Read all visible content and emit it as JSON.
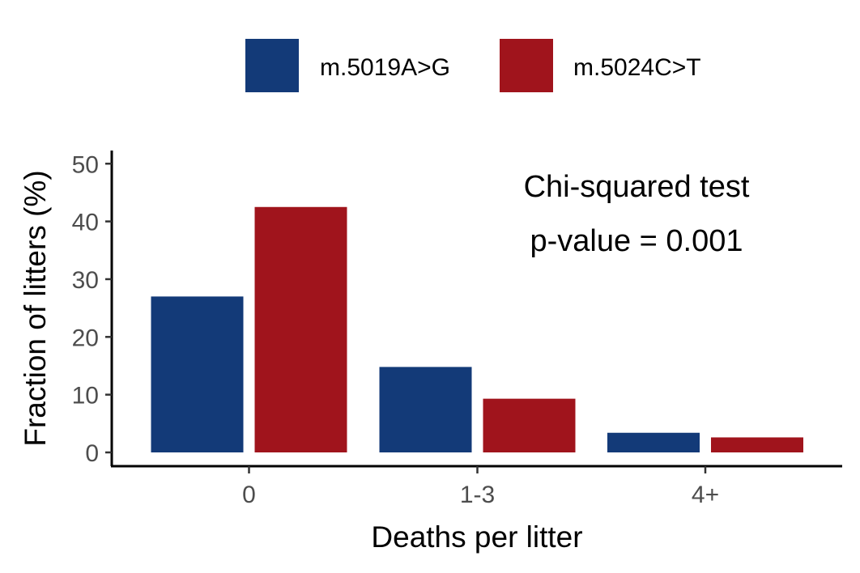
{
  "chart_data": {
    "type": "bar",
    "title": "",
    "xlabel": "Deaths per litter",
    "ylabel": "Fraction of litters (%)",
    "categories": [
      "0",
      "1-3",
      "4+"
    ],
    "series": [
      {
        "name": "m.5019A>G",
        "color": "#133a78",
        "values": [
          27,
          14.8,
          3.4
        ]
      },
      {
        "name": "m.5024C>T",
        "color": "#a0141c",
        "values": [
          42.5,
          9.3,
          2.6
        ]
      }
    ],
    "ylim": [
      0,
      52
    ],
    "yticks": [
      0,
      10,
      20,
      30,
      40,
      50
    ],
    "grid": false,
    "legend_position": "top",
    "annotations": [
      "Chi-squared test",
      "p-value = 0.001"
    ]
  }
}
